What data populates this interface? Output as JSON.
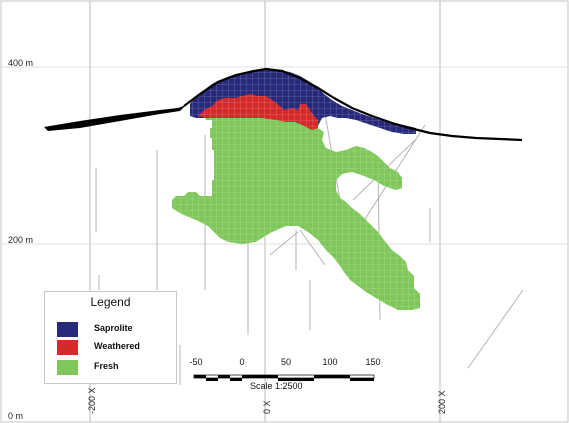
{
  "elevations": [
    {
      "label": "400 m",
      "value": 400
    },
    {
      "label": "200 m",
      "value": 200
    },
    {
      "label": "0 m",
      "value": 0
    }
  ],
  "eastings": [
    {
      "label": "-200 X",
      "value": -200
    },
    {
      "label": "0 X",
      "value": 0
    },
    {
      "label": "200 X",
      "value": 200
    }
  ],
  "legend": {
    "title": "Legend",
    "items": [
      {
        "label": "Saprolite",
        "color": "#27297a"
      },
      {
        "label": "Weathered",
        "color": "#d42a2a"
      },
      {
        "label": "Fresh",
        "color": "#7fc75a"
      }
    ]
  },
  "scale_bar": {
    "ticks": [
      "-50",
      "0",
      "50",
      "100",
      "150"
    ],
    "title": "Scale 1:2500"
  },
  "colors": {
    "saprolite": "#27297a",
    "weathered": "#d42a2a",
    "fresh": "#7fc75a",
    "topography": "#000000",
    "grid": "#a8a8a8",
    "drillhole": "#b4b4b4"
  }
}
